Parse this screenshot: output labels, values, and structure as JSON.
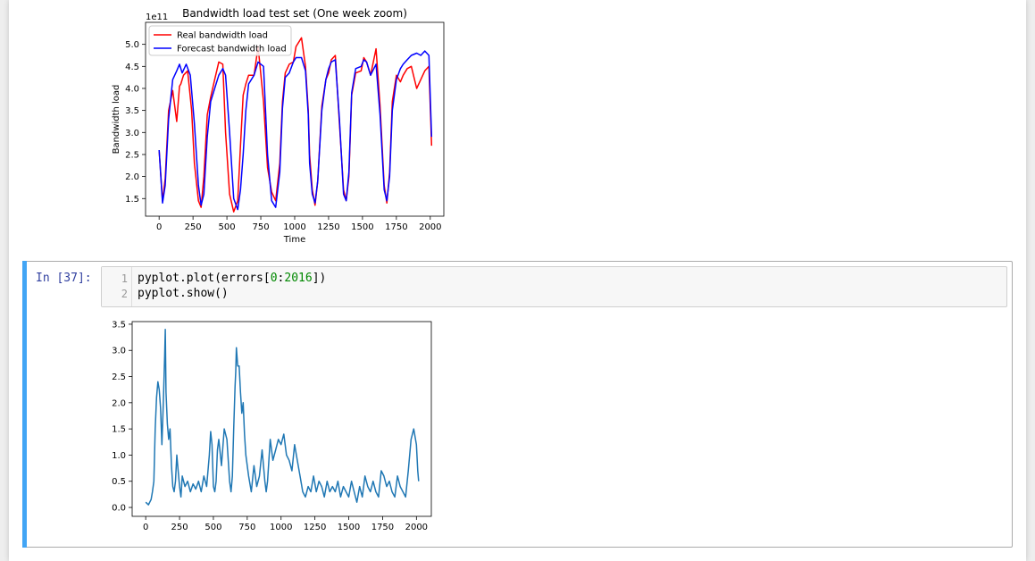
{
  "code_cell": {
    "prompt": "In [37]:",
    "line_numbers": [
      "1",
      "2"
    ],
    "line1": {
      "pre": "pyplot.plot(errors[",
      "n1": "0",
      "colon": ":",
      "n2": "2016",
      "post": "])"
    },
    "line2": "pyplot.show()"
  },
  "chart_data": [
    {
      "type": "line",
      "title": "Bandwidth load test set (One week zoom)",
      "xlabel": "Time",
      "ylabel": "Bandwidth load",
      "offset_label": "1e11",
      "xlim": [
        -100,
        2100
      ],
      "ylim": [
        1.1,
        5.5
      ],
      "x_ticks": [
        0,
        250,
        500,
        750,
        1000,
        1250,
        1500,
        1750,
        2000
      ],
      "y_ticks": [
        1.5,
        2.0,
        2.5,
        3.0,
        3.5,
        4.0,
        4.5,
        5.0
      ],
      "x_tick_labels": [
        "0",
        "250",
        "500",
        "750",
        "1000",
        "1250",
        "1500",
        "1750",
        "2000"
      ],
      "y_tick_labels": [
        "1.5",
        "2.0",
        "2.5",
        "3.0",
        "3.5",
        "4.0",
        "4.5",
        "5.0"
      ],
      "grid": false,
      "legend": "upper-left",
      "series": [
        {
          "name": "Real bandwidth load",
          "color": "#ff0000",
          "x": [
            0,
            25,
            45,
            70,
            100,
            130,
            150,
            160,
            180,
            210,
            240,
            260,
            290,
            310,
            330,
            355,
            380,
            410,
            440,
            470,
            490,
            520,
            550,
            580,
            600,
            620,
            640,
            660,
            700,
            730,
            770,
            800,
            830,
            860,
            890,
            910,
            930,
            960,
            990,
            1010,
            1050,
            1080,
            1100,
            1110,
            1130,
            1150,
            1170,
            1200,
            1230,
            1250,
            1270,
            1300,
            1330,
            1360,
            1380,
            1400,
            1420,
            1450,
            1490,
            1510,
            1530,
            1560,
            1600,
            1630,
            1660,
            1680,
            1700,
            1720,
            1750,
            1780,
            1800,
            1830,
            1860,
            1900,
            1930,
            1960,
            1990,
            2010
          ],
          "y": [
            2.6,
            1.45,
            1.95,
            3.5,
            3.95,
            3.25,
            4.05,
            4.1,
            4.3,
            4.4,
            3.5,
            2.3,
            1.45,
            1.3,
            2.0,
            3.4,
            3.8,
            4.2,
            4.6,
            4.55,
            3.0,
            1.6,
            1.2,
            1.45,
            2.7,
            3.85,
            4.1,
            4.3,
            4.3,
            4.95,
            3.7,
            2.2,
            1.65,
            1.45,
            2.3,
            3.7,
            4.35,
            4.55,
            4.6,
            4.95,
            5.15,
            4.5,
            3.5,
            2.5,
            1.7,
            1.35,
            1.9,
            3.6,
            4.2,
            4.35,
            4.65,
            4.75,
            3.2,
            1.7,
            1.45,
            2.0,
            3.85,
            4.35,
            4.4,
            4.7,
            4.6,
            4.3,
            4.9,
            3.6,
            1.8,
            1.4,
            2.1,
            3.7,
            4.3,
            4.15,
            4.3,
            4.45,
            4.5,
            4.0,
            4.2,
            4.4,
            4.5,
            2.7
          ]
        },
        {
          "name": "Forecast bandwidth load",
          "color": "#0000ff",
          "x": [
            0,
            25,
            45,
            70,
            100,
            130,
            150,
            170,
            200,
            230,
            260,
            290,
            310,
            330,
            355,
            380,
            410,
            440,
            470,
            490,
            520,
            550,
            580,
            600,
            620,
            640,
            660,
            700,
            730,
            770,
            800,
            830,
            860,
            890,
            910,
            930,
            960,
            990,
            1010,
            1050,
            1080,
            1100,
            1110,
            1130,
            1150,
            1170,
            1200,
            1230,
            1250,
            1270,
            1300,
            1330,
            1360,
            1380,
            1400,
            1420,
            1450,
            1490,
            1510,
            1530,
            1560,
            1600,
            1630,
            1660,
            1680,
            1700,
            1720,
            1750,
            1780,
            1800,
            1830,
            1860,
            1900,
            1930,
            1960,
            1990,
            2010
          ],
          "y": [
            2.6,
            1.4,
            1.8,
            3.3,
            4.2,
            4.4,
            4.55,
            4.35,
            4.55,
            4.3,
            3.2,
            1.8,
            1.35,
            1.6,
            2.9,
            3.7,
            4.0,
            4.3,
            4.45,
            4.3,
            3.0,
            1.5,
            1.25,
            1.7,
            2.5,
            3.5,
            4.1,
            4.3,
            4.6,
            4.5,
            2.5,
            1.45,
            1.3,
            2.1,
            3.55,
            4.25,
            4.35,
            4.6,
            4.7,
            4.7,
            4.4,
            3.4,
            2.3,
            1.6,
            1.4,
            1.9,
            3.5,
            4.2,
            4.45,
            4.6,
            4.65,
            3.3,
            1.6,
            1.45,
            2.1,
            3.9,
            4.45,
            4.5,
            4.65,
            4.6,
            4.3,
            4.55,
            3.4,
            1.7,
            1.45,
            2.0,
            3.5,
            4.2,
            4.45,
            4.55,
            4.65,
            4.75,
            4.8,
            4.75,
            4.85,
            4.75,
            2.9
          ]
        }
      ]
    },
    {
      "type": "line",
      "title": "",
      "xlabel": "",
      "ylabel": "",
      "xlim": [
        -100,
        2110
      ],
      "ylim": [
        -0.17,
        3.55
      ],
      "x_ticks": [
        0,
        250,
        500,
        750,
        1000,
        1250,
        1500,
        1750,
        2000
      ],
      "y_ticks": [
        0.0,
        0.5,
        1.0,
        1.5,
        2.0,
        2.5,
        3.0,
        3.5
      ],
      "x_tick_labels": [
        "0",
        "250",
        "500",
        "750",
        "1000",
        "1250",
        "1500",
        "1750",
        "2000"
      ],
      "y_tick_labels": [
        "0.0",
        "0.5",
        "1.0",
        "1.5",
        "2.0",
        "2.5",
        "3.0",
        "3.5"
      ],
      "grid": false,
      "legend": "none",
      "series": [
        {
          "color": "#1f77b4",
          "x": [
            0,
            20,
            40,
            50,
            60,
            70,
            80,
            90,
            100,
            110,
            120,
            130,
            140,
            145,
            150,
            160,
            170,
            180,
            190,
            200,
            210,
            220,
            230,
            240,
            250,
            260,
            270,
            290,
            310,
            330,
            350,
            370,
            390,
            410,
            430,
            450,
            470,
            480,
            490,
            500,
            510,
            520,
            530,
            540,
            560,
            580,
            600,
            620,
            630,
            640,
            650,
            660,
            665,
            670,
            680,
            690,
            700,
            710,
            720,
            730,
            740,
            760,
            780,
            800,
            820,
            840,
            860,
            880,
            890,
            900,
            920,
            940,
            960,
            980,
            1000,
            1020,
            1040,
            1060,
            1080,
            1100,
            1120,
            1140,
            1160,
            1180,
            1200,
            1220,
            1240,
            1260,
            1280,
            1300,
            1320,
            1340,
            1360,
            1380,
            1400,
            1420,
            1440,
            1460,
            1480,
            1500,
            1520,
            1540,
            1560,
            1580,
            1600,
            1620,
            1640,
            1660,
            1680,
            1700,
            1720,
            1740,
            1760,
            1780,
            1800,
            1820,
            1840,
            1860,
            1880,
            1900,
            1920,
            1940,
            1960,
            1980,
            2000,
            2010,
            2016
          ],
          "y": [
            0.1,
            0.05,
            0.15,
            0.3,
            0.5,
            1.5,
            2.1,
            2.4,
            2.25,
            1.9,
            1.2,
            2.0,
            2.9,
            3.4,
            2.2,
            1.6,
            1.3,
            1.5,
            0.8,
            0.4,
            0.3,
            0.5,
            1.0,
            0.7,
            0.4,
            0.2,
            0.6,
            0.4,
            0.5,
            0.3,
            0.45,
            0.35,
            0.5,
            0.3,
            0.6,
            0.4,
            1.0,
            1.45,
            1.2,
            0.4,
            0.3,
            0.5,
            1.1,
            1.3,
            0.8,
            1.5,
            1.3,
            0.5,
            0.3,
            0.6,
            1.5,
            2.3,
            2.6,
            3.05,
            2.7,
            2.7,
            2.2,
            1.8,
            2.0,
            1.4,
            1.0,
            0.6,
            0.3,
            0.8,
            0.4,
            0.6,
            1.1,
            0.5,
            0.3,
            0.5,
            1.3,
            0.9,
            1.1,
            1.3,
            1.2,
            1.4,
            1.0,
            0.9,
            0.7,
            1.2,
            0.9,
            0.6,
            0.3,
            0.2,
            0.4,
            0.3,
            0.6,
            0.3,
            0.5,
            0.4,
            0.2,
            0.5,
            0.3,
            0.4,
            0.3,
            0.5,
            0.2,
            0.4,
            0.3,
            0.2,
            0.5,
            0.3,
            0.1,
            0.4,
            0.2,
            0.6,
            0.4,
            0.3,
            0.5,
            0.3,
            0.2,
            0.7,
            0.6,
            0.4,
            0.5,
            0.3,
            0.2,
            0.6,
            0.4,
            0.3,
            0.2,
            0.7,
            1.3,
            1.5,
            1.2,
            0.7,
            0.5
          ]
        }
      ]
    }
  ]
}
